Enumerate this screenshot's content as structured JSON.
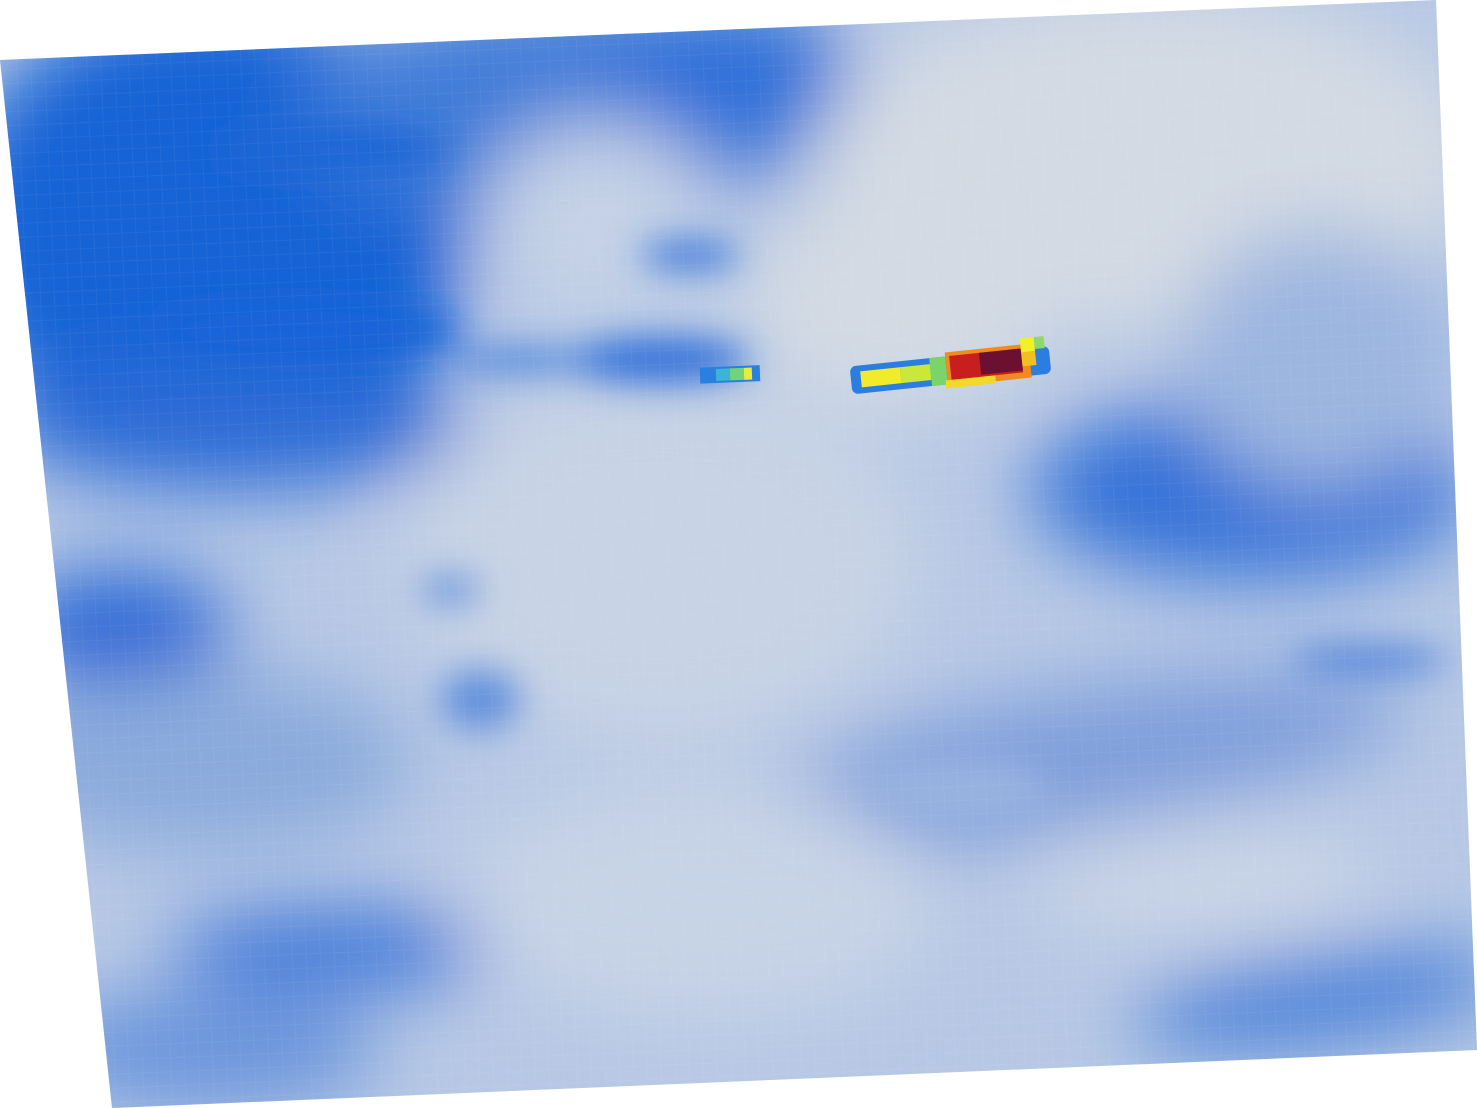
{
  "map": {
    "type": "raster-heatmap",
    "projection": "rotated-grid",
    "legend": "none",
    "axes": "none",
    "colors": {
      "low_deep_blue": "#1560d4",
      "mid_blue": "#6f99da",
      "pale_blue": "#b4c7e6",
      "background_gray": "#d5dbe3",
      "cyan": "#35b8d8",
      "green": "#6fd47a",
      "yellow": "#f2f02a",
      "orange": "#f08c1e",
      "red": "#c81e1e",
      "dark_red": "#6b1030"
    }
  }
}
